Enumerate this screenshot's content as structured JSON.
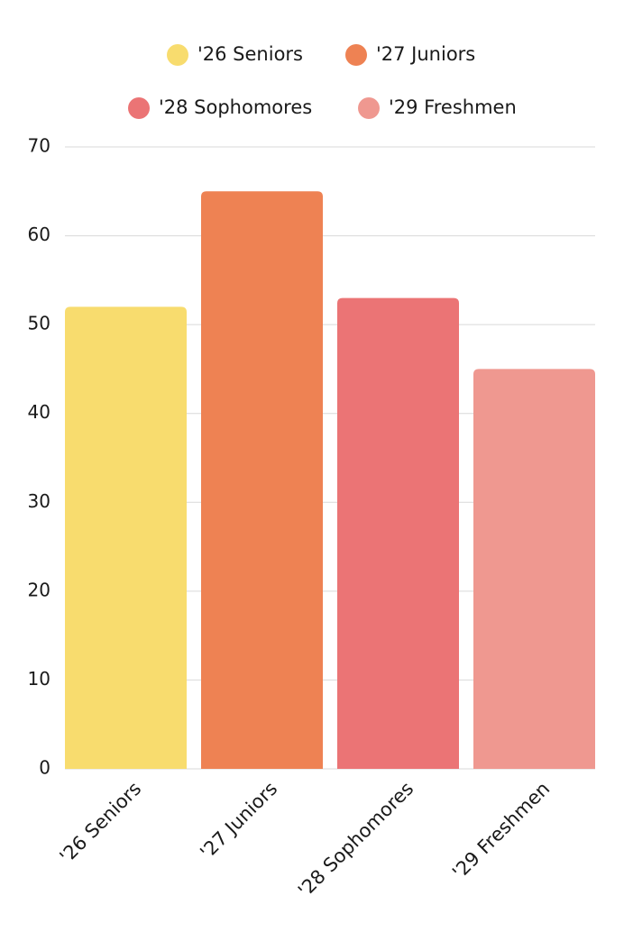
{
  "chart_data": {
    "type": "bar",
    "categories": [
      "'26 Seniors",
      "'27 Juniors",
      "'28 Sophomores",
      "'29 Freshmen"
    ],
    "values": [
      52,
      65,
      53,
      45
    ],
    "colors": [
      "#f8dc6e",
      "#ee8253",
      "#eb7475",
      "#ef9890"
    ],
    "ylim": [
      0,
      70
    ],
    "yticks": [
      0,
      10,
      20,
      30,
      40,
      50,
      60,
      70
    ],
    "grid": true,
    "legend": "top"
  }
}
